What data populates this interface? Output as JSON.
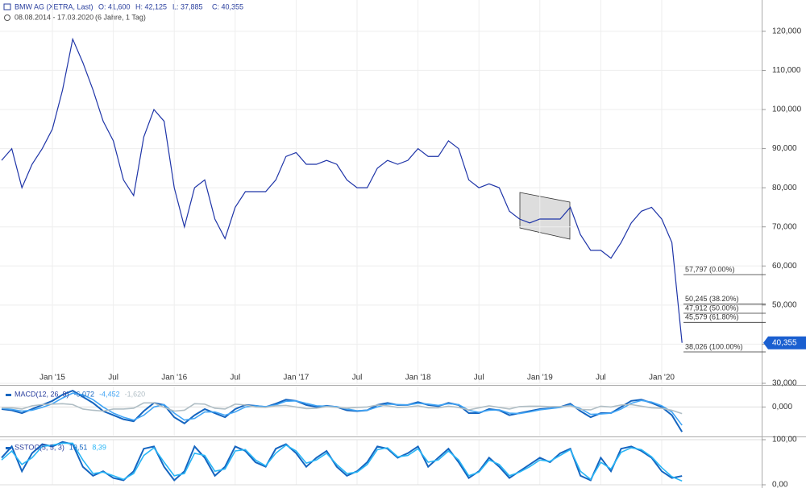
{
  "chart_data": [
    {
      "type": "line",
      "title": "BMW AG (XETRA, Last)",
      "quote": [
        "O: 41,600",
        "H: 42,125",
        "L: 37,885",
        "C: 40,355"
      ],
      "subtitle": "08.08.2014 - 17.03.2020",
      "period": "(6 Jahre, 1 Tag)",
      "categories": [
        null,
        null,
        null,
        null,
        null,
        "Jan '15",
        null,
        null,
        null,
        null,
        null,
        "Jul",
        null,
        null,
        null,
        null,
        null,
        "Jan '16",
        null,
        null,
        null,
        null,
        null,
        "Jul",
        null,
        null,
        null,
        null,
        null,
        "Jan '17",
        null,
        null,
        null,
        null,
        null,
        "Jul",
        null,
        null,
        null,
        null,
        null,
        "Jan '18",
        null,
        null,
        null,
        null,
        null,
        "Jul",
        null,
        null,
        null,
        null,
        null,
        "Jan '19",
        null,
        null,
        null,
        null,
        null,
        "Jul",
        null,
        null,
        null,
        null,
        null,
        "Jan '20",
        null,
        null
      ],
      "series": [
        {
          "color": "#1f35a8",
          "values": [
            87,
            90,
            80,
            86,
            90,
            95,
            105,
            118,
            112,
            105,
            97,
            92,
            82,
            78,
            93,
            100,
            97,
            80,
            70,
            80,
            82,
            72,
            67,
            75,
            79,
            79,
            79,
            82,
            88,
            89,
            86,
            86,
            87,
            86,
            82,
            80,
            80,
            85,
            87,
            86,
            87,
            90,
            88,
            88,
            92,
            90,
            82,
            80,
            81,
            80,
            74,
            72,
            71,
            72,
            72,
            72,
            75,
            68,
            64,
            64,
            62,
            66,
            71,
            74,
            75,
            72,
            66,
            40.355
          ]
        }
      ],
      "ylim": [
        30,
        128
      ],
      "yticks": [
        {
          "value": 30,
          "label": "30,000"
        },
        {
          "value": 40,
          "label": "40,000"
        },
        {
          "value": 50,
          "label": "50,000"
        },
        {
          "value": 60,
          "label": "60,000"
        },
        {
          "value": 70,
          "label": "70,000"
        },
        {
          "value": 80,
          "label": "80,000"
        },
        {
          "value": 90,
          "label": "90,000"
        },
        {
          "value": 100,
          "label": "100,000"
        },
        {
          "value": 110,
          "label": "110,000"
        },
        {
          "value": 120,
          "label": "120,000"
        }
      ],
      "grid": true,
      "fib_levels": [
        {
          "value": 57.797,
          "label": "57,797 (0.00%)"
        },
        {
          "value": 50.245,
          "label": "50,245 (38.20%)"
        },
        {
          "value": 47.912,
          "label": "47,912 (50.00%)"
        },
        {
          "value": 45.579,
          "label": "45,579 (61.80%)"
        },
        {
          "value": 38.026,
          "label": "38,026 (100.00%)"
        }
      ],
      "last_price": {
        "value": 40.355,
        "label": "40,355"
      }
    },
    {
      "type": "line",
      "title": "MACD(12, 26, 9)",
      "series": [
        {
          "color": "#1565c0",
          "last_label": "-6,072",
          "values": [
            -0.5,
            -0.8,
            -1.5,
            -0.5,
            0.5,
            1.5,
            3,
            4,
            2.5,
            1,
            -1,
            -2,
            -3,
            -3.5,
            -1,
            1,
            0.5,
            -2.5,
            -4,
            -2,
            -0.5,
            -1.5,
            -2.5,
            -0.5,
            0.5,
            0.3,
            0,
            0.8,
            1.8,
            1.5,
            0.5,
            0,
            0.3,
            0,
            -0.8,
            -1,
            -0.8,
            0.5,
            1,
            0.5,
            0.5,
            1.2,
            0.5,
            0.2,
            1,
            0.5,
            -1.5,
            -1.5,
            -0.5,
            -0.8,
            -2,
            -1.5,
            -1,
            -0.5,
            -0.3,
            0,
            0.8,
            -1,
            -2.5,
            -1.5,
            -1.5,
            0,
            1.5,
            1.8,
            1,
            0,
            -2,
            -6.072
          ]
        },
        {
          "color": "#42a5f5",
          "last_label": "-4,452",
          "values": [
            -0.3,
            -0.6,
            -1.0,
            -0.8,
            -0.1,
            0.8,
            2.2,
            3.4,
            3.0,
            1.8,
            0,
            -1.5,
            -2.5,
            -3.2,
            -2,
            0,
            0.6,
            -1.5,
            -3.2,
            -2.8,
            -1.2,
            -1.2,
            -2,
            -1.2,
            0,
            0.3,
            0.1,
            0.5,
            1.4,
            1.5,
            0.9,
            0.3,
            0.2,
            0.1,
            -0.5,
            -0.9,
            -0.8,
            0,
            0.7,
            0.6,
            0.5,
            0.9,
            0.7,
            0.4,
            0.8,
            0.6,
            -0.8,
            -1.3,
            -0.8,
            -0.7,
            -1.5,
            -1.6,
            -1.2,
            -0.7,
            -0.4,
            -0.1,
            0.5,
            -0.4,
            -1.8,
            -1.7,
            -1.5,
            -0.5,
            0.9,
            1.6,
            1.2,
            0.3,
            -1.2,
            -4.452
          ]
        },
        {
          "color": "#b0bec5",
          "last_label": "-1,620",
          "values": [
            -0.2,
            -0.2,
            -0.5,
            0.3,
            0.6,
            0.7,
            0.8,
            0.6,
            -0.5,
            -0.8,
            -1,
            -0.5,
            -0.5,
            -0.3,
            1,
            1,
            -0.1,
            -1,
            -0.8,
            0.8,
            0.7,
            -0.3,
            -0.5,
            0.7,
            0.5,
            0,
            -0.1,
            0.3,
            0.4,
            0,
            -0.4,
            -0.3,
            0.1,
            -0.1,
            -0.3,
            -0.1,
            0,
            0.5,
            0.3,
            -0.1,
            0,
            0.3,
            -0.2,
            -0.2,
            0.2,
            -0.1,
            -0.7,
            -0.2,
            0.3,
            -0.1,
            -0.5,
            0.1,
            0.2,
            0.2,
            0.1,
            0.1,
            0.3,
            -0.6,
            -0.7,
            0.2,
            0,
            0.5,
            0.6,
            0.2,
            -0.2,
            -0.3,
            -0.8,
            -1.62
          ]
        }
      ],
      "ylim": [
        -7,
        5
      ],
      "yticks": [
        {
          "value": 0,
          "label": "0,000"
        }
      ]
    },
    {
      "type": "line",
      "title": "SSTOC(5, 5, 3)",
      "series": [
        {
          "color": "#1565c0",
          "last_label": "19,51",
          "values": [
            60,
            85,
            30,
            70,
            90,
            85,
            95,
            90,
            40,
            20,
            30,
            15,
            10,
            30,
            80,
            85,
            40,
            10,
            30,
            85,
            60,
            20,
            40,
            85,
            75,
            50,
            40,
            80,
            90,
            70,
            40,
            60,
            75,
            40,
            20,
            30,
            50,
            85,
            80,
            60,
            70,
            85,
            40,
            60,
            80,
            50,
            15,
            30,
            60,
            40,
            15,
            30,
            45,
            60,
            50,
            70,
            80,
            20,
            10,
            60,
            30,
            80,
            85,
            75,
            60,
            30,
            15,
            19.51
          ]
        },
        {
          "color": "#29b6f6",
          "last_label": "8,39",
          "values": [
            55,
            75,
            45,
            60,
            85,
            88,
            92,
            92,
            55,
            25,
            28,
            20,
            12,
            25,
            65,
            82,
            50,
            20,
            25,
            70,
            65,
            30,
            35,
            75,
            78,
            55,
            42,
            70,
            88,
            75,
            48,
            55,
            70,
            45,
            25,
            28,
            45,
            78,
            82,
            62,
            65,
            80,
            50,
            55,
            75,
            55,
            20,
            28,
            55,
            45,
            20,
            28,
            40,
            55,
            52,
            65,
            78,
            30,
            12,
            50,
            35,
            72,
            82,
            78,
            62,
            38,
            18,
            8.39
          ]
        }
      ],
      "ylim": [
        0,
        100
      ],
      "yticks": [
        {
          "value": 0,
          "label": "0,00"
        },
        {
          "value": 100,
          "label": "100,00"
        }
      ]
    }
  ]
}
